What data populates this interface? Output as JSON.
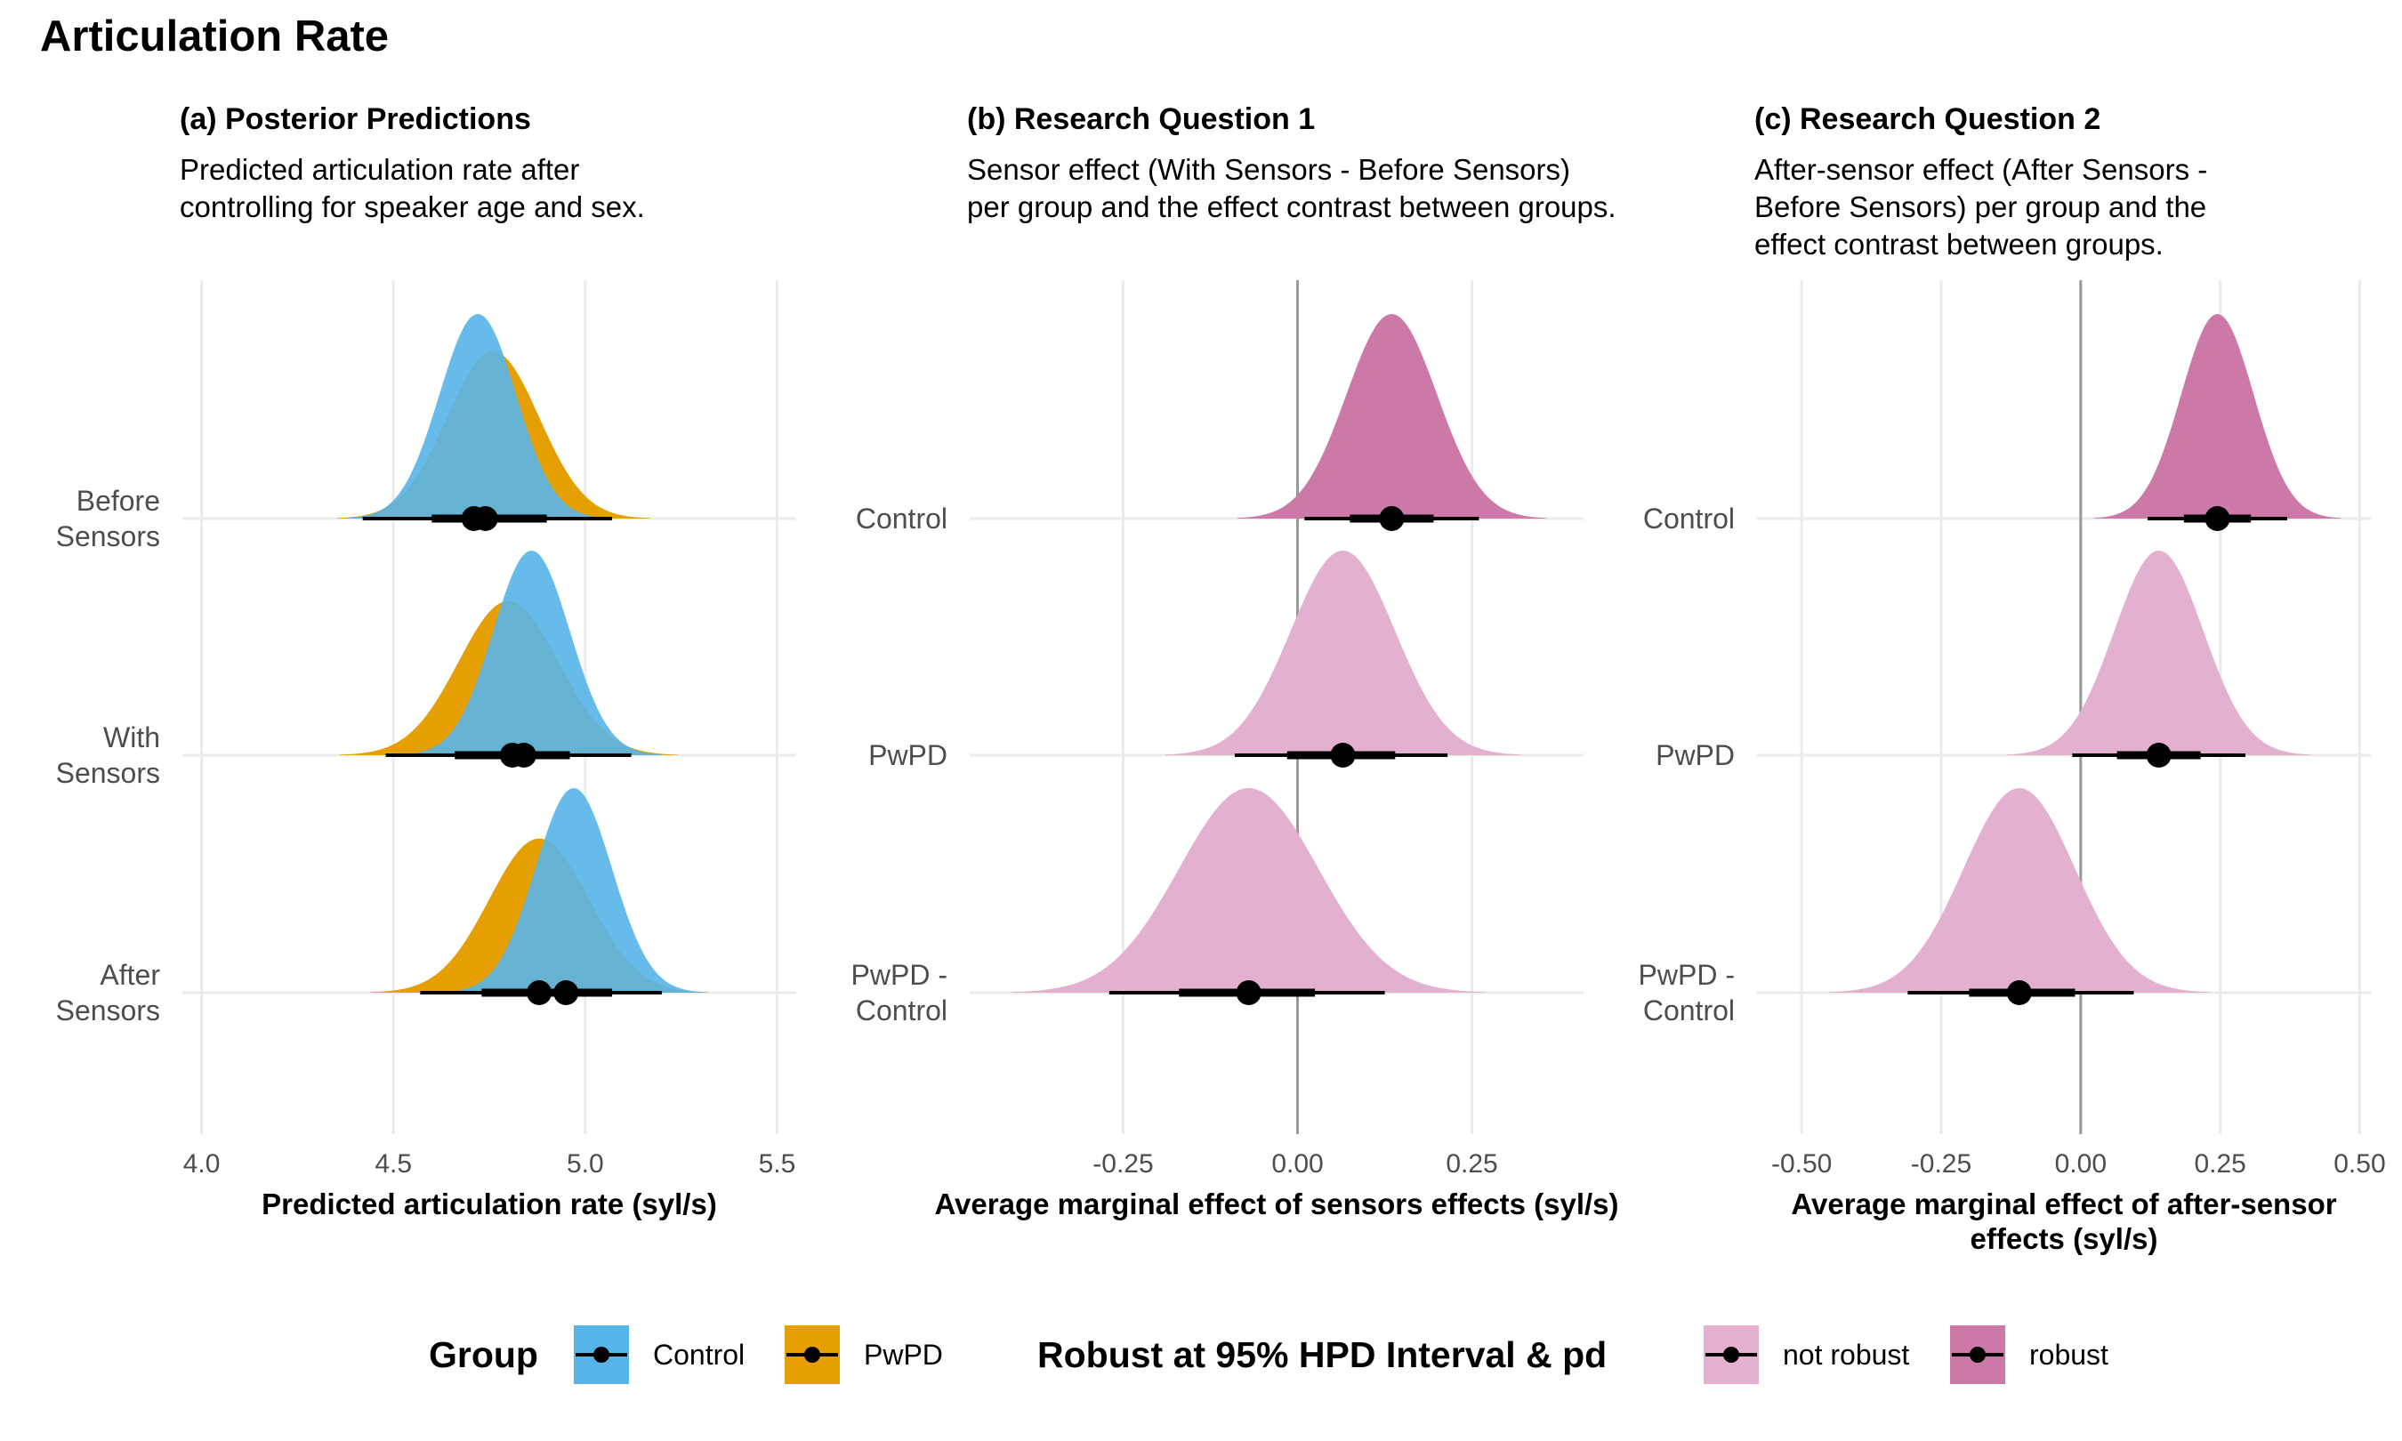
{
  "title": "Articulation Rate",
  "colors": {
    "control": "#56B4E9",
    "pwpd": "#E69F00",
    "overlap": "#6aaed6",
    "not_robust": "#e3b1cf",
    "robust": "#cc79a7",
    "grid": "#ebebeb",
    "zero_line": "#999999"
  },
  "chart_data": [
    {
      "type": "area",
      "panel_title": "(a) Posterior Predictions",
      "panel_subtitle": [
        "Predicted articulation rate after",
        "controlling for speaker age and sex."
      ],
      "xlabel": [
        "Predicted articulation rate (syl/s)"
      ],
      "ylabel": "",
      "xlim": [
        3.95,
        5.55
      ],
      "xticks": [
        4.0,
        4.5,
        5.0,
        5.5
      ],
      "xtick_labels": [
        "4.0",
        "4.5",
        "5.0",
        "5.5"
      ],
      "zero_line": false,
      "categories": [
        {
          "label": [
            "Before",
            "Sensors"
          ],
          "series": [
            {
              "group": "PwPD",
              "mean": 4.76,
              "sd": 0.12,
              "mode": 4.74,
              "hpd66": [
                4.6,
                4.9
              ],
              "hpd95": [
                4.42,
                5.07
              ]
            },
            {
              "group": "Control",
              "mean": 4.72,
              "sd": 0.1,
              "mode": 4.71,
              "hpd66": [
                4.61,
                4.84
              ],
              "hpd95": [
                4.5,
                4.95
              ]
            }
          ]
        },
        {
          "label": [
            "With",
            "Sensors"
          ],
          "series": [
            {
              "group": "PwPD",
              "mean": 4.8,
              "sd": 0.13,
              "mode": 4.81,
              "hpd66": [
                4.66,
                4.96
              ],
              "hpd95": [
                4.48,
                5.12
              ]
            },
            {
              "group": "Control",
              "mean": 4.86,
              "sd": 0.1,
              "mode": 4.84,
              "hpd66": [
                4.74,
                4.95
              ],
              "hpd95": [
                4.62,
                5.06
              ]
            }
          ]
        },
        {
          "label": [
            "After",
            "Sensors"
          ],
          "series": [
            {
              "group": "PwPD",
              "mean": 4.88,
              "sd": 0.13,
              "mode": 4.88,
              "hpd66": [
                4.73,
                5.03
              ],
              "hpd95": [
                4.57,
                5.2
              ]
            },
            {
              "group": "Control",
              "mean": 4.97,
              "sd": 0.1,
              "mode": 4.95,
              "hpd66": [
                4.85,
                5.07
              ],
              "hpd95": [
                4.74,
                5.17
              ]
            }
          ]
        }
      ]
    },
    {
      "type": "area",
      "panel_title": "(b) Research Question 1",
      "panel_subtitle": [
        "Sensor effect (With Sensors - Before Sensors)",
        "per group and the effect contrast between groups."
      ],
      "xlabel": [
        "Average marginal effect of sensors effects (syl/s)"
      ],
      "ylabel": "",
      "xlim": [
        -0.47,
        0.41
      ],
      "xticks": [
        -0.25,
        0.0,
        0.25
      ],
      "xtick_labels": [
        "-0.25",
        "0.00",
        "0.25"
      ],
      "zero_line": true,
      "categories": [
        {
          "label": [
            "Control"
          ],
          "robust": true,
          "mean": 0.135,
          "sd": 0.065,
          "mode": 0.135,
          "hpd66": [
            0.075,
            0.195
          ],
          "hpd95": [
            0.01,
            0.26
          ]
        },
        {
          "label": [
            "PwPD"
          ],
          "robust": false,
          "mean": 0.065,
          "sd": 0.075,
          "mode": 0.065,
          "hpd66": [
            -0.015,
            0.14
          ],
          "hpd95": [
            -0.09,
            0.215
          ]
        },
        {
          "label": [
            "PwPD -",
            "Control"
          ],
          "robust": false,
          "mean": -0.07,
          "sd": 0.1,
          "mode": -0.07,
          "hpd66": [
            -0.17,
            0.025
          ],
          "hpd95": [
            -0.27,
            0.125
          ]
        }
      ]
    },
    {
      "type": "area",
      "panel_title": "(c) Research Question 2",
      "panel_subtitle": [
        "After-sensor effect (After Sensors -",
        "Before Sensors) per group and the",
        "effect contrast between groups."
      ],
      "xlabel": [
        "Average marginal effect of after-sensor",
        "effects (syl/s)"
      ],
      "ylabel": "",
      "xlim": [
        -0.58,
        0.52
      ],
      "xticks": [
        -0.5,
        -0.25,
        0.0,
        0.25,
        0.5
      ],
      "xtick_labels": [
        "-0.50",
        "-0.25",
        "0.00",
        "0.25",
        "0.50"
      ],
      "zero_line": true,
      "categories": [
        {
          "label": [
            "Control"
          ],
          "robust": true,
          "mean": 0.245,
          "sd": 0.065,
          "mode": 0.245,
          "hpd66": [
            0.185,
            0.305
          ],
          "hpd95": [
            0.12,
            0.37
          ]
        },
        {
          "label": [
            "PwPD"
          ],
          "robust": false,
          "mean": 0.14,
          "sd": 0.08,
          "mode": 0.14,
          "hpd66": [
            0.065,
            0.215
          ],
          "hpd95": [
            -0.015,
            0.295
          ]
        },
        {
          "label": [
            "PwPD -",
            "Control"
          ],
          "robust": false,
          "mean": -0.11,
          "sd": 0.1,
          "mode": -0.11,
          "hpd66": [
            -0.2,
            -0.01
          ],
          "hpd95": [
            -0.31,
            0.095
          ]
        }
      ]
    }
  ],
  "legends": {
    "group": {
      "title": "Group",
      "items": [
        "Control",
        "PwPD"
      ]
    },
    "robust": {
      "title": "Robust at 95% HPD Interval & pd",
      "items": [
        "not robust",
        "robust"
      ]
    }
  }
}
